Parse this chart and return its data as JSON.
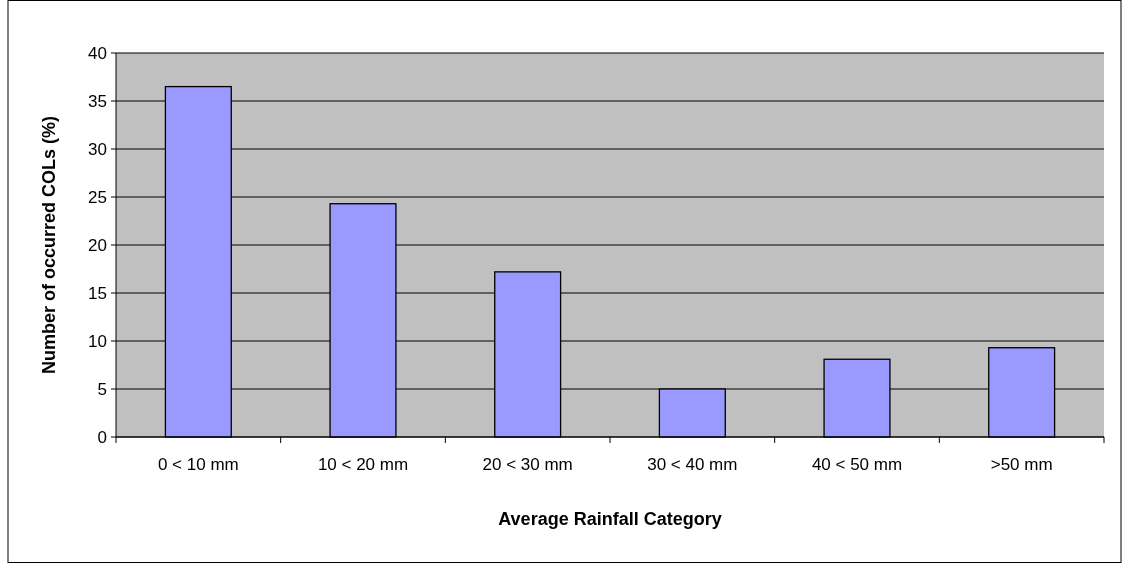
{
  "chart_data": {
    "type": "bar",
    "xlabel": "Average Rainfall Category",
    "ylabel": "Number of occurred COLs (%)",
    "categories": [
      "0 < 10 mm",
      "10 < 20 mm",
      "20 < 30 mm",
      "30 < 40 mm",
      "40 < 50 mm",
      ">50 mm"
    ],
    "values": [
      36.5,
      24.3,
      17.2,
      5.0,
      8.1,
      9.3
    ],
    "color": "#9999ff",
    "ylim": [
      0,
      40
    ],
    "yticks": [
      0,
      5,
      10,
      15,
      20,
      25,
      30,
      35,
      40
    ],
    "grid": "y"
  }
}
